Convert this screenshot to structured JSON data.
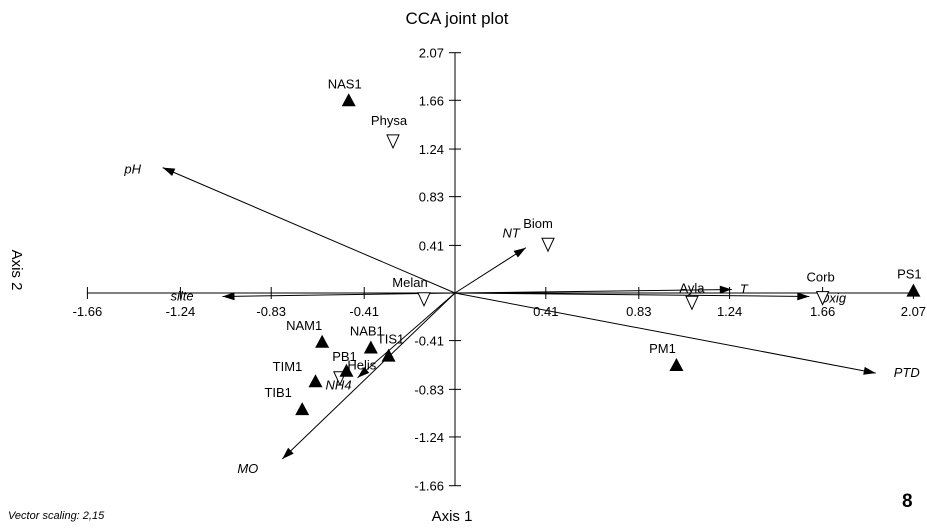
{
  "chart_data": {
    "type": "scatter",
    "title": "CCA joint plot",
    "xlabel": "Axis 1",
    "ylabel": "Axis 2",
    "xlim": [
      -1.66,
      2.07
    ],
    "ylim": [
      -1.66,
      2.07
    ],
    "x_ticks": [
      -1.66,
      -1.24,
      -0.83,
      -0.41,
      0.41,
      0.83,
      1.24,
      1.66,
      2.07
    ],
    "x_tick_labels": [
      "-1.66",
      "-1.24",
      "-0.83",
      "-0.41",
      "0.41",
      "0.83",
      "1.24",
      "1.66",
      "2.07"
    ],
    "y_ticks": [
      2.07,
      1.66,
      1.24,
      0.83,
      0.41,
      -0.41,
      -0.83,
      -1.24,
      -1.66
    ],
    "y_tick_labels": [
      "2.07",
      "1.66",
      "1.24",
      "0.83",
      "0.41",
      "-0.41",
      "-0.83",
      "-1.24",
      "-1.66"
    ],
    "grid": false,
    "sites": [
      {
        "label": "NAS1",
        "x": -0.48,
        "y": 1.66
      },
      {
        "label": "PS1",
        "x": 2.07,
        "y": 0.02
      },
      {
        "label": "PM1",
        "x": 1.0,
        "y": -0.62
      },
      {
        "label": "NAM1",
        "x": -0.6,
        "y": -0.42
      },
      {
        "label": "NAB1",
        "x": -0.38,
        "y": -0.47
      },
      {
        "label": "TIS1",
        "x": -0.3,
        "y": -0.54
      },
      {
        "label": "PB1",
        "x": -0.49,
        "y": -0.67
      },
      {
        "label": "TIM1",
        "x": -0.63,
        "y": -0.76
      },
      {
        "label": "TIB1",
        "x": -0.69,
        "y": -1.0
      }
    ],
    "species": [
      {
        "label": "Physa",
        "x": -0.28,
        "y": 1.31
      },
      {
        "label": "Biom",
        "x": 0.42,
        "y": 0.42
      },
      {
        "label": "Melan",
        "x": -0.14,
        "y": -0.05
      },
      {
        "label": "Ayla",
        "x": 1.07,
        "y": -0.08
      },
      {
        "label": "Corb",
        "x": 1.66,
        "y": -0.04
      },
      {
        "label": "Helis",
        "x": -0.52,
        "y": -0.73
      }
    ],
    "env_vectors": [
      {
        "label": "pH",
        "x": -1.32,
        "y": 1.08
      },
      {
        "label": "NT",
        "x": 0.32,
        "y": 0.39
      },
      {
        "label": "T",
        "x": 1.25,
        "y": 0.03
      },
      {
        "label": "Oxig",
        "x": 1.6,
        "y": -0.03
      },
      {
        "label": "PTD",
        "x": 1.9,
        "y": -0.69
      },
      {
        "label": "silte",
        "x": -1.05,
        "y": -0.03
      },
      {
        "label": "NH4",
        "x": -0.44,
        "y": -0.73
      },
      {
        "label": "MO",
        "x": -0.78,
        "y": -1.43
      }
    ],
    "vector_scaling": "Vector scaling: 2,15",
    "panel_number": "8"
  },
  "colors": {
    "axis": "#000000",
    "site_marker": "#000000",
    "species_marker": "#ffffff",
    "vector": "#000000"
  }
}
